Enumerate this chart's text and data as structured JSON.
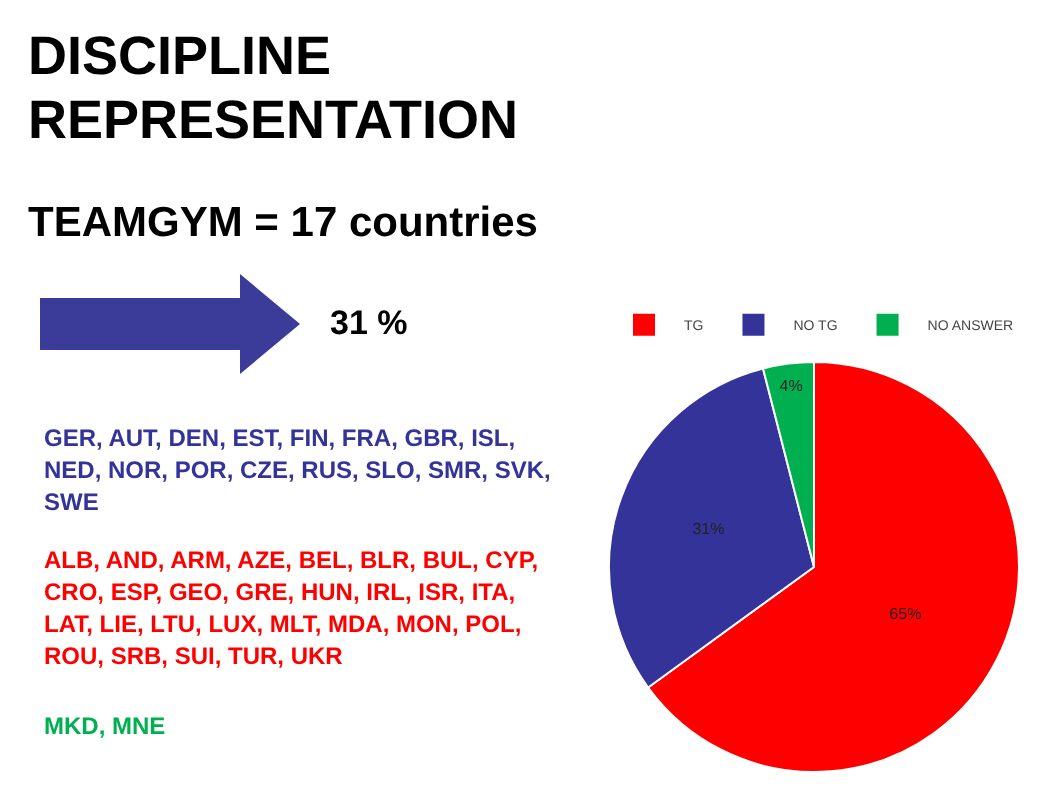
{
  "chart_data": {
    "type": "pie",
    "title": "DISCIPLINE\nREPRESENTATION",
    "categories": [
      "TG",
      "NO TG",
      "NO ANSWER"
    ],
    "values": [
      65,
      31,
      4
    ],
    "colors": [
      "#ff0000",
      "#333399",
      "#00b050"
    ],
    "value_labels": [
      "65%",
      "31%",
      "4%"
    ],
    "legend": "top",
    "annotations": [
      "TEAMGYM = 17 countries",
      "31 %",
      "GER, AUT, DEN, EST, FIN, FRA, GBR, ISL, NED, NOR, POR, CZE, RUS, SLO, SMR, SVK, SWE",
      "ALB, AND, ARM, AZE, BEL, BLR, BUL, CYP, CRO, ESP, GEO, GRE, HUN, IRL, ISR, ITA, LAT, LIE, LTU, LUX, MLT, MDA, MON, POL, ROU, SRB, SUI, TUR, UKR",
      "MKD, MNE"
    ]
  }
}
